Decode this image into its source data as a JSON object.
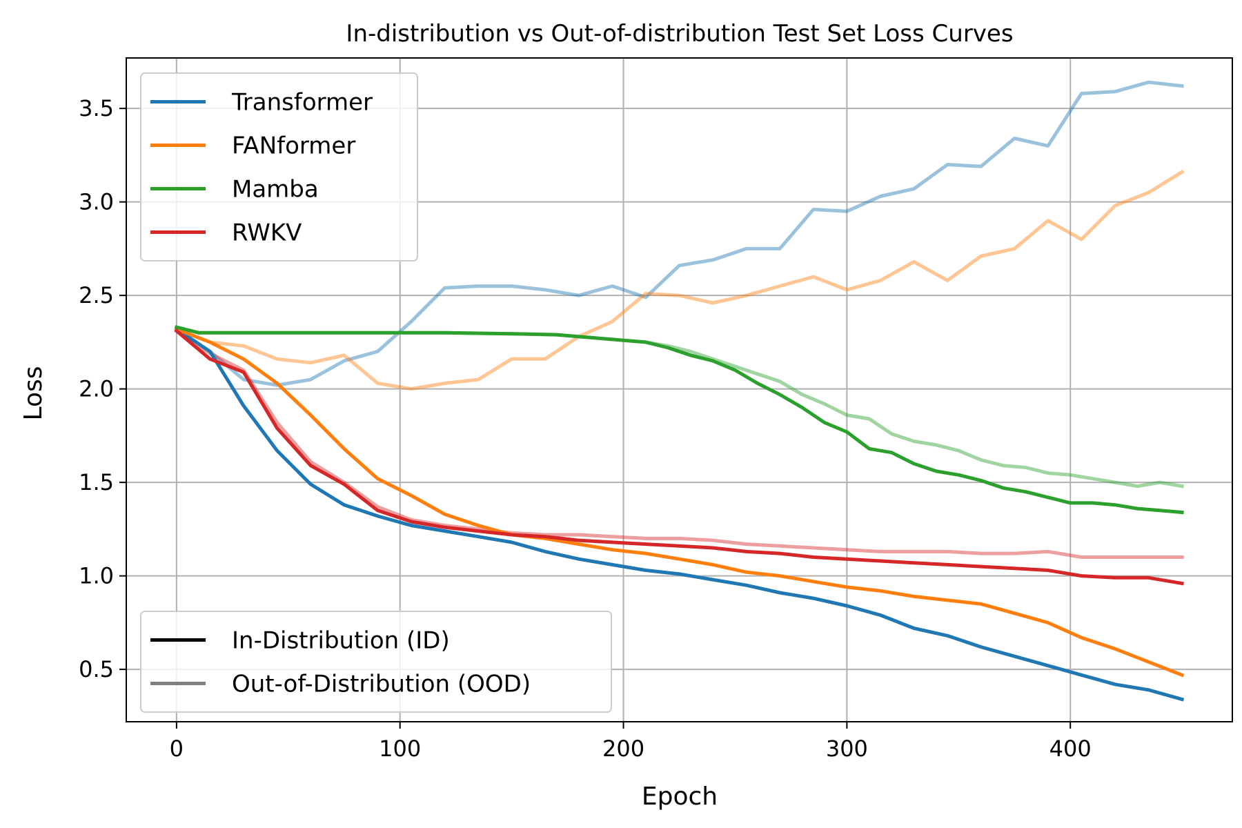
{
  "chart_data": {
    "type": "line",
    "title": "In-distribution vs Out-of-distribution Test Set Loss Curves",
    "xlabel": "Epoch",
    "ylabel": "Loss",
    "xlim": [
      -22.5,
      472.5
    ],
    "ylim": [
      0.22,
      3.77
    ],
    "xticks": [
      0,
      100,
      200,
      300,
      400
    ],
    "xtick_labels": [
      "0",
      "100",
      "200",
      "300",
      "400"
    ],
    "yticks": [
      0.5,
      1.0,
      1.5,
      2.0,
      2.5,
      3.0,
      3.5
    ],
    "ytick_labels": [
      "0.5",
      "1.0",
      "1.5",
      "2.0",
      "2.5",
      "3.0",
      "3.5"
    ],
    "grid": true,
    "legend_models": {
      "placement": "top-left",
      "entries": [
        {
          "label": "Transformer",
          "color": "#1f77b4"
        },
        {
          "label": "FANformer",
          "color": "#ff7f0e"
        },
        {
          "label": "Mamba",
          "color": "#2ca02c"
        },
        {
          "label": "RWKV",
          "color": "#d62728"
        }
      ]
    },
    "legend_styles": {
      "placement": "bottom-left",
      "entries": [
        {
          "label": "In-Distribution (ID)",
          "color": "#000000",
          "opacity": 1.0
        },
        {
          "label": "Out-of-Distribution (OOD)",
          "color": "#808080",
          "opacity": 1.0
        }
      ]
    },
    "series": [
      {
        "name": "Transformer",
        "variant": "ID",
        "color": "#1f77b4",
        "opacity": 1.0,
        "points": [
          [
            0,
            2.32
          ],
          [
            15,
            2.2
          ],
          [
            30,
            1.91
          ],
          [
            45,
            1.67
          ],
          [
            60,
            1.49
          ],
          [
            75,
            1.38
          ],
          [
            90,
            1.32
          ],
          [
            105,
            1.27
          ],
          [
            120,
            1.24
          ],
          [
            135,
            1.21
          ],
          [
            150,
            1.18
          ],
          [
            165,
            1.13
          ],
          [
            180,
            1.09
          ],
          [
            195,
            1.06
          ],
          [
            210,
            1.03
          ],
          [
            225,
            1.01
          ],
          [
            240,
            0.98
          ],
          [
            255,
            0.95
          ],
          [
            270,
            0.91
          ],
          [
            285,
            0.88
          ],
          [
            300,
            0.84
          ],
          [
            315,
            0.79
          ],
          [
            330,
            0.72
          ],
          [
            345,
            0.68
          ],
          [
            360,
            0.62
          ],
          [
            375,
            0.57
          ],
          [
            390,
            0.52
          ],
          [
            405,
            0.47
          ],
          [
            420,
            0.42
          ],
          [
            435,
            0.39
          ],
          [
            450,
            0.34
          ]
        ]
      },
      {
        "name": "Transformer",
        "variant": "OOD",
        "color": "#1f77b4",
        "opacity": 0.45,
        "points": [
          [
            0,
            2.32
          ],
          [
            15,
            2.2
          ],
          [
            30,
            2.05
          ],
          [
            45,
            2.02
          ],
          [
            60,
            2.05
          ],
          [
            75,
            2.15
          ],
          [
            90,
            2.2
          ],
          [
            105,
            2.36
          ],
          [
            120,
            2.54
          ],
          [
            135,
            2.55
          ],
          [
            150,
            2.55
          ],
          [
            165,
            2.53
          ],
          [
            180,
            2.5
          ],
          [
            195,
            2.55
          ],
          [
            210,
            2.49
          ],
          [
            225,
            2.66
          ],
          [
            240,
            2.69
          ],
          [
            255,
            2.75
          ],
          [
            270,
            2.75
          ],
          [
            285,
            2.96
          ],
          [
            300,
            2.95
          ],
          [
            315,
            3.03
          ],
          [
            330,
            3.07
          ],
          [
            345,
            3.2
          ],
          [
            360,
            3.19
          ],
          [
            375,
            3.34
          ],
          [
            390,
            3.3
          ],
          [
            405,
            3.58
          ],
          [
            420,
            3.59
          ],
          [
            435,
            3.64
          ],
          [
            450,
            3.62
          ]
        ]
      },
      {
        "name": "FANformer",
        "variant": "ID",
        "color": "#ff7f0e",
        "opacity": 1.0,
        "points": [
          [
            0,
            2.32
          ],
          [
            15,
            2.25
          ],
          [
            30,
            2.16
          ],
          [
            45,
            2.03
          ],
          [
            60,
            1.86
          ],
          [
            75,
            1.68
          ],
          [
            90,
            1.52
          ],
          [
            105,
            1.43
          ],
          [
            120,
            1.33
          ],
          [
            135,
            1.27
          ],
          [
            150,
            1.22
          ],
          [
            165,
            1.2
          ],
          [
            180,
            1.17
          ],
          [
            195,
            1.14
          ],
          [
            210,
            1.12
          ],
          [
            225,
            1.09
          ],
          [
            240,
            1.06
          ],
          [
            255,
            1.02
          ],
          [
            270,
            1.0
          ],
          [
            285,
            0.97
          ],
          [
            300,
            0.94
          ],
          [
            315,
            0.92
          ],
          [
            330,
            0.89
          ],
          [
            345,
            0.87
          ],
          [
            360,
            0.85
          ],
          [
            375,
            0.8
          ],
          [
            390,
            0.75
          ],
          [
            405,
            0.67
          ],
          [
            420,
            0.61
          ],
          [
            435,
            0.54
          ],
          [
            450,
            0.47
          ]
        ]
      },
      {
        "name": "FANformer",
        "variant": "OOD",
        "color": "#ff7f0e",
        "opacity": 0.45,
        "points": [
          [
            0,
            2.32
          ],
          [
            15,
            2.25
          ],
          [
            30,
            2.23
          ],
          [
            45,
            2.16
          ],
          [
            60,
            2.14
          ],
          [
            75,
            2.18
          ],
          [
            90,
            2.03
          ],
          [
            105,
            2.0
          ],
          [
            120,
            2.03
          ],
          [
            135,
            2.05
          ],
          [
            150,
            2.16
          ],
          [
            165,
            2.16
          ],
          [
            180,
            2.28
          ],
          [
            195,
            2.36
          ],
          [
            210,
            2.51
          ],
          [
            225,
            2.5
          ],
          [
            240,
            2.46
          ],
          [
            255,
            2.5
          ],
          [
            270,
            2.55
          ],
          [
            285,
            2.6
          ],
          [
            300,
            2.53
          ],
          [
            315,
            2.58
          ],
          [
            330,
            2.68
          ],
          [
            345,
            2.58
          ],
          [
            360,
            2.71
          ],
          [
            375,
            2.75
          ],
          [
            390,
            2.9
          ],
          [
            405,
            2.8
          ],
          [
            420,
            2.98
          ],
          [
            435,
            3.05
          ],
          [
            450,
            3.16
          ]
        ]
      },
      {
        "name": "Mamba",
        "variant": "ID",
        "color": "#2ca02c",
        "opacity": 1.0,
        "points": [
          [
            0,
            2.33
          ],
          [
            10,
            2.3
          ],
          [
            30,
            2.3
          ],
          [
            60,
            2.3
          ],
          [
            90,
            2.3
          ],
          [
            120,
            2.3
          ],
          [
            150,
            2.295
          ],
          [
            170,
            2.29
          ],
          [
            190,
            2.27
          ],
          [
            200,
            2.26
          ],
          [
            210,
            2.25
          ],
          [
            220,
            2.22
          ],
          [
            230,
            2.18
          ],
          [
            240,
            2.15
          ],
          [
            250,
            2.1
          ],
          [
            260,
            2.03
          ],
          [
            270,
            1.97
          ],
          [
            280,
            1.9
          ],
          [
            290,
            1.82
          ],
          [
            300,
            1.77
          ],
          [
            310,
            1.68
          ],
          [
            320,
            1.66
          ],
          [
            330,
            1.6
          ],
          [
            340,
            1.56
          ],
          [
            350,
            1.54
          ],
          [
            360,
            1.51
          ],
          [
            370,
            1.47
          ],
          [
            380,
            1.45
          ],
          [
            390,
            1.42
          ],
          [
            400,
            1.39
          ],
          [
            410,
            1.39
          ],
          [
            420,
            1.38
          ],
          [
            430,
            1.36
          ],
          [
            440,
            1.35
          ],
          [
            450,
            1.34
          ]
        ]
      },
      {
        "name": "Mamba",
        "variant": "OOD",
        "color": "#2ca02c",
        "opacity": 0.45,
        "points": [
          [
            0,
            2.33
          ],
          [
            10,
            2.3
          ],
          [
            30,
            2.3
          ],
          [
            60,
            2.3
          ],
          [
            90,
            2.3
          ],
          [
            120,
            2.3
          ],
          [
            150,
            2.295
          ],
          [
            170,
            2.29
          ],
          [
            190,
            2.27
          ],
          [
            200,
            2.26
          ],
          [
            210,
            2.25
          ],
          [
            220,
            2.23
          ],
          [
            230,
            2.2
          ],
          [
            240,
            2.16
          ],
          [
            250,
            2.12
          ],
          [
            260,
            2.08
          ],
          [
            270,
            2.04
          ],
          [
            280,
            1.97
          ],
          [
            290,
            1.92
          ],
          [
            300,
            1.86
          ],
          [
            310,
            1.84
          ],
          [
            320,
            1.76
          ],
          [
            330,
            1.72
          ],
          [
            340,
            1.7
          ],
          [
            350,
            1.67
          ],
          [
            360,
            1.62
          ],
          [
            370,
            1.59
          ],
          [
            380,
            1.58
          ],
          [
            390,
            1.55
          ],
          [
            400,
            1.54
          ],
          [
            410,
            1.52
          ],
          [
            420,
            1.5
          ],
          [
            430,
            1.48
          ],
          [
            440,
            1.5
          ],
          [
            450,
            1.48
          ]
        ]
      },
      {
        "name": "RWKV",
        "variant": "ID",
        "color": "#d62728",
        "opacity": 1.0,
        "points": [
          [
            0,
            2.31
          ],
          [
            15,
            2.16
          ],
          [
            30,
            2.09
          ],
          [
            45,
            1.79
          ],
          [
            60,
            1.59
          ],
          [
            75,
            1.49
          ],
          [
            90,
            1.35
          ],
          [
            105,
            1.29
          ],
          [
            120,
            1.26
          ],
          [
            135,
            1.24
          ],
          [
            150,
            1.22
          ],
          [
            165,
            1.21
          ],
          [
            180,
            1.19
          ],
          [
            195,
            1.18
          ],
          [
            210,
            1.17
          ],
          [
            225,
            1.16
          ],
          [
            240,
            1.15
          ],
          [
            255,
            1.13
          ],
          [
            270,
            1.12
          ],
          [
            285,
            1.1
          ],
          [
            300,
            1.09
          ],
          [
            315,
            1.08
          ],
          [
            330,
            1.07
          ],
          [
            345,
            1.06
          ],
          [
            360,
            1.05
          ],
          [
            375,
            1.04
          ],
          [
            390,
            1.03
          ],
          [
            405,
            1.0
          ],
          [
            420,
            0.99
          ],
          [
            435,
            0.99
          ],
          [
            450,
            0.96
          ]
        ]
      },
      {
        "name": "RWKV",
        "variant": "OOD",
        "color": "#d62728",
        "opacity": 0.45,
        "points": [
          [
            0,
            2.31
          ],
          [
            15,
            2.19
          ],
          [
            30,
            2.1
          ],
          [
            45,
            1.82
          ],
          [
            60,
            1.61
          ],
          [
            75,
            1.5
          ],
          [
            90,
            1.37
          ],
          [
            105,
            1.3
          ],
          [
            120,
            1.27
          ],
          [
            135,
            1.25
          ],
          [
            150,
            1.23
          ],
          [
            165,
            1.22
          ],
          [
            180,
            1.22
          ],
          [
            195,
            1.21
          ],
          [
            210,
            1.2
          ],
          [
            225,
            1.2
          ],
          [
            240,
            1.19
          ],
          [
            255,
            1.17
          ],
          [
            270,
            1.16
          ],
          [
            285,
            1.15
          ],
          [
            300,
            1.14
          ],
          [
            315,
            1.13
          ],
          [
            330,
            1.13
          ],
          [
            345,
            1.13
          ],
          [
            360,
            1.12
          ],
          [
            375,
            1.12
          ],
          [
            390,
            1.13
          ],
          [
            405,
            1.1
          ],
          [
            420,
            1.1
          ],
          [
            435,
            1.1
          ],
          [
            450,
            1.1
          ]
        ]
      }
    ]
  }
}
